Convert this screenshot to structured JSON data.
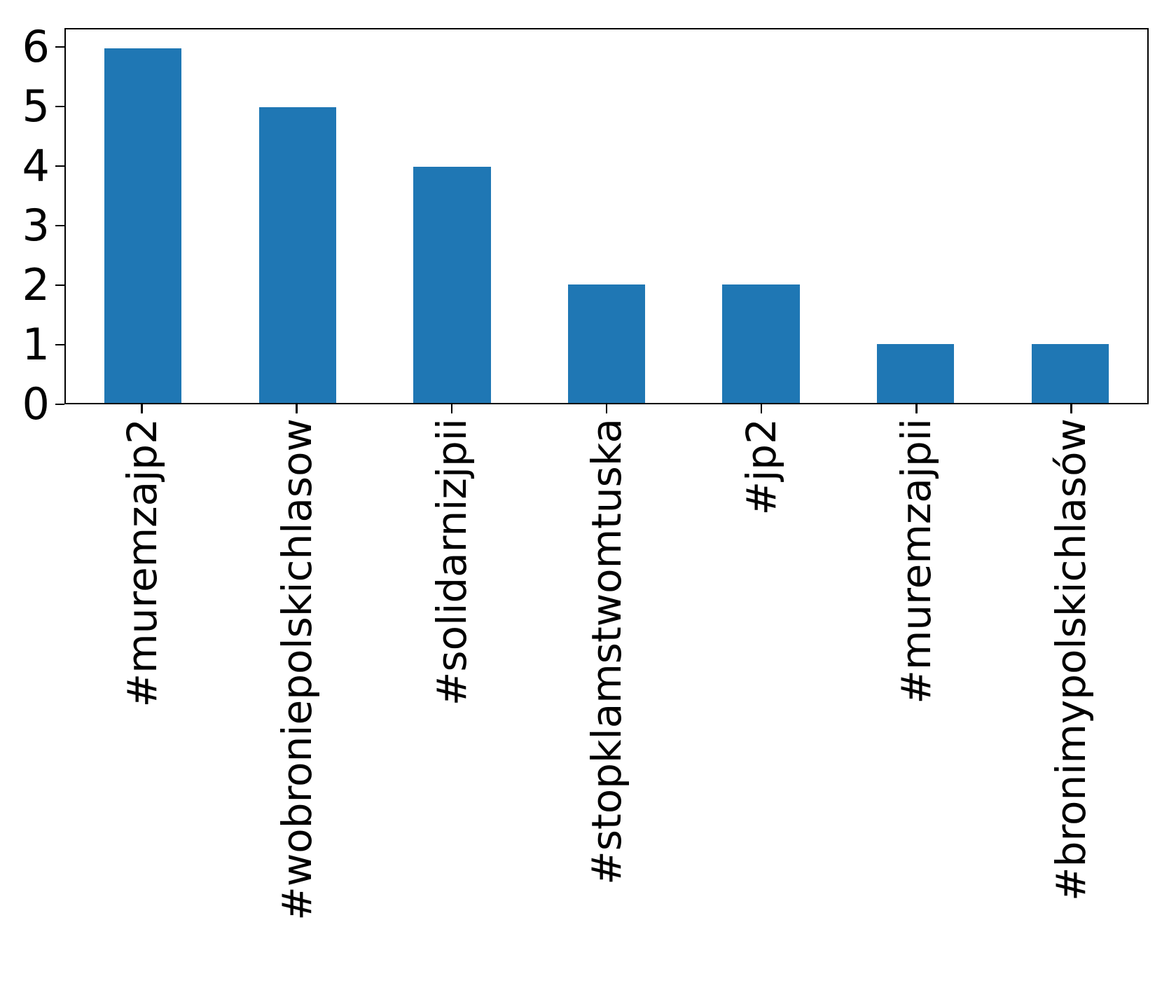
{
  "chart_data": {
    "type": "bar",
    "title": "",
    "xlabel": "",
    "ylabel": "",
    "categories": [
      "#muremzajp2",
      "#wobroniepolskichlasow",
      "#solidarnizjpii",
      "#stopklamstwomtuska",
      "#jp2",
      "#muremzajpii",
      "#bronimypolskichlasów"
    ],
    "values": [
      6,
      5,
      4,
      2,
      2,
      1,
      1
    ],
    "yticks": [
      0,
      1,
      2,
      3,
      4,
      5,
      6
    ],
    "ylim": [
      0,
      6.32
    ],
    "grid": false,
    "legend_position": "none",
    "bar_color": "#1f77b4",
    "axis_color": "#000000",
    "tick_label_color": "#000000",
    "bar_width_fraction": 0.5,
    "x_label_rotation_deg": 90
  }
}
